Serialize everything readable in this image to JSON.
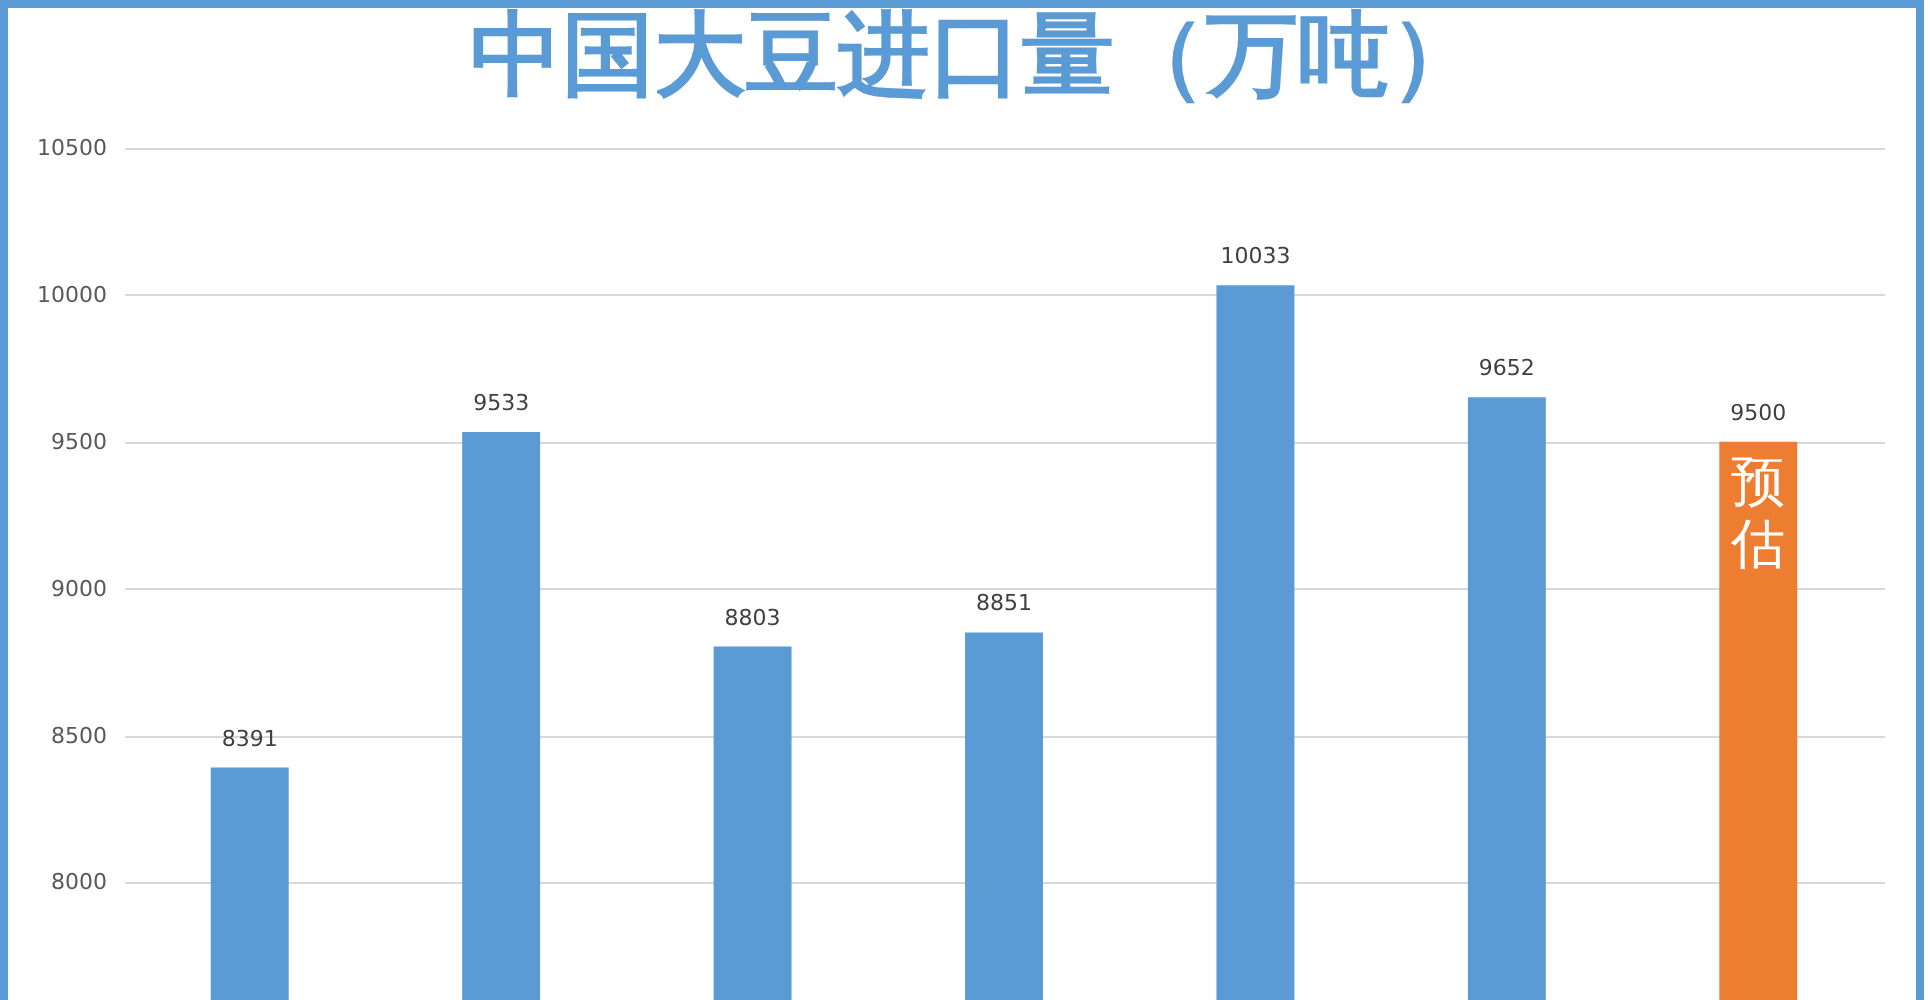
{
  "chart_data": {
    "type": "bar",
    "title": "中国大豆进口量（万吨）",
    "categories": [
      null,
      null,
      null,
      null,
      null,
      null,
      null
    ],
    "values": [
      8391,
      9533,
      8803,
      8851,
      10033,
      9652,
      9500
    ],
    "colors": [
      "#5b9bd5",
      "#5b9bd5",
      "#5b9bd5",
      "#5b9bd5",
      "#5b9bd5",
      "#5b9bd5",
      "#ed7d31"
    ],
    "ylim": [
      7600,
      10500
    ],
    "yticks": [
      8000,
      8500,
      9000,
      9500,
      10000,
      10500
    ],
    "grid": "y",
    "data_labels": true,
    "tick_labels": "y",
    "annotations": [
      {
        "text": "预估",
        "y": 9500
      }
    ]
  }
}
